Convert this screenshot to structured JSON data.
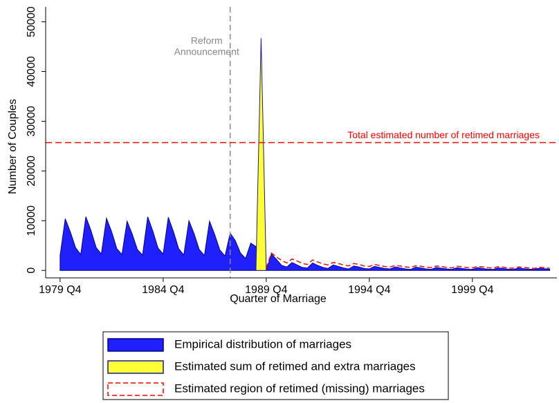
{
  "chart_data": {
    "type": "area",
    "xlabel": "Quarter of Marriage",
    "ylabel": "Number of Couples",
    "xlim": [
      1979.05,
      2003.85
    ],
    "ylim": [
      -1500,
      53000
    ],
    "xticks": [
      {
        "value": 1979.75,
        "label": "1979 Q4"
      },
      {
        "value": 1984.75,
        "label": "1984 Q4"
      },
      {
        "value": 1989.75,
        "label": "1989 Q4"
      },
      {
        "value": 1994.75,
        "label": "1994 Q4"
      },
      {
        "value": 1999.75,
        "label": "1999 Q4"
      }
    ],
    "yticks": [
      0,
      10000,
      20000,
      30000,
      40000,
      50000
    ],
    "vline": {
      "value": 1988,
      "label": [
        "Reform",
        "Announcement"
      ],
      "color": "#888888"
    },
    "hline": {
      "value": 25700,
      "label": "Total estimated number of retimed marriages",
      "color": "#ff0000"
    },
    "series": [
      {
        "name": "Empirical distribution of marriages",
        "style": "area",
        "color": "#2020ff",
        "edge": "#00008b",
        "x": [
          1979.75,
          1980,
          1980.25,
          1980.5,
          1980.75,
          1981,
          1981.25,
          1981.5,
          1981.75,
          1982,
          1982.25,
          1982.5,
          1982.75,
          1983,
          1983.25,
          1983.5,
          1983.75,
          1984,
          1984.25,
          1984.5,
          1984.75,
          1985,
          1985.25,
          1985.5,
          1985.75,
          1986,
          1986.25,
          1986.5,
          1986.75,
          1987,
          1987.25,
          1987.5,
          1987.75,
          1988,
          1988.25,
          1988.5,
          1988.75,
          1989,
          1989.25,
          1989.5,
          1989.75,
          1990,
          1990.25,
          1990.5,
          1990.75,
          1991,
          1991.25,
          1991.5,
          1991.75,
          1992,
          1992.25,
          1992.5,
          1992.75,
          1993,
          1993.25,
          1993.5,
          1993.75,
          1994,
          1994.25,
          1994.5,
          1994.75,
          1995,
          1995.25,
          1995.5,
          1995.75,
          1996,
          1996.25,
          1996.5,
          1996.75,
          1997,
          1997.25,
          1997.5,
          1997.75,
          1998,
          1998.25,
          1998.5,
          1998.75,
          1999,
          1999.25,
          1999.5,
          1999.75,
          2000,
          2000.25,
          2000.5,
          2000.75,
          2001,
          2001.25,
          2001.5,
          2001.75,
          2002,
          2002.25,
          2002.5,
          2002.75,
          2003,
          2003.25,
          2003.5
        ],
        "values": [
          3000,
          10400,
          7700,
          4600,
          3200,
          10800,
          8000,
          4600,
          3300,
          10500,
          7800,
          4400,
          3200,
          9900,
          7300,
          4200,
          3100,
          10800,
          7900,
          4500,
          3300,
          10700,
          7800,
          4400,
          3100,
          10000,
          7400,
          4200,
          3000,
          9900,
          7200,
          4100,
          2900,
          7500,
          6000,
          3500,
          2400,
          5500,
          4800,
          0,
          0,
          3300,
          2200,
          1000,
          700,
          1600,
          1100,
          600,
          500,
          1500,
          1000,
          600,
          400,
          1100,
          800,
          500,
          300,
          900,
          700,
          400,
          300,
          800,
          600,
          400,
          300,
          700,
          500,
          300,
          200,
          650,
          500,
          300,
          200,
          600,
          450,
          300,
          200,
          550,
          400,
          250,
          200,
          550,
          400,
          250,
          200,
          500,
          400,
          250,
          200,
          500,
          350,
          250,
          200,
          450,
          350,
          250
        ]
      },
      {
        "name": "Estimated sum of retimed and extra marriages",
        "style": "area",
        "color": "#ffff33",
        "edge": "#1a1a8c",
        "x": [
          1989.25,
          1989.5,
          1989.75
        ],
        "values": [
          0,
          46700,
          0
        ]
      },
      {
        "name": "Estimated region of retimed (missing) marriages",
        "style": "dashed",
        "color": "#ff0000",
        "x": [
          1989.75,
          1990,
          1990.25,
          1990.5,
          1990.75,
          1991,
          1991.25,
          1991.5,
          1991.75,
          1992,
          1992.25,
          1992.5,
          1992.75,
          1993,
          1993.25,
          1993.5,
          1993.75,
          1994,
          1994.25,
          1994.5,
          1994.75,
          1995,
          1995.25,
          1995.5,
          1995.75,
          1996,
          1996.25,
          1996.5,
          1996.75,
          1997,
          1997.25,
          1997.5,
          1997.75,
          1998,
          1998.25,
          1998.5,
          1998.75,
          1999,
          1999.25,
          1999.5,
          1999.75,
          2000,
          2000.25,
          2000.5,
          2000.75,
          2001,
          2001.25,
          2001.5,
          2001.75,
          2002,
          2002.25,
          2002.5,
          2002.75,
          2003,
          2003.25,
          2003.5
        ],
        "values": [
          500,
          3500,
          2700,
          2000,
          1500,
          2300,
          1900,
          1400,
          1200,
          2100,
          1700,
          1300,
          1100,
          1600,
          1400,
          1100,
          900,
          1400,
          1200,
          900,
          800,
          1200,
          1000,
          800,
          700,
          1000,
          900,
          700,
          600,
          950,
          850,
          650,
          550,
          900,
          800,
          600,
          500,
          850,
          750,
          550,
          500,
          800,
          700,
          550,
          450,
          750,
          650,
          500,
          450,
          700,
          600,
          500,
          400,
          650,
          550,
          450
        ]
      }
    ]
  }
}
